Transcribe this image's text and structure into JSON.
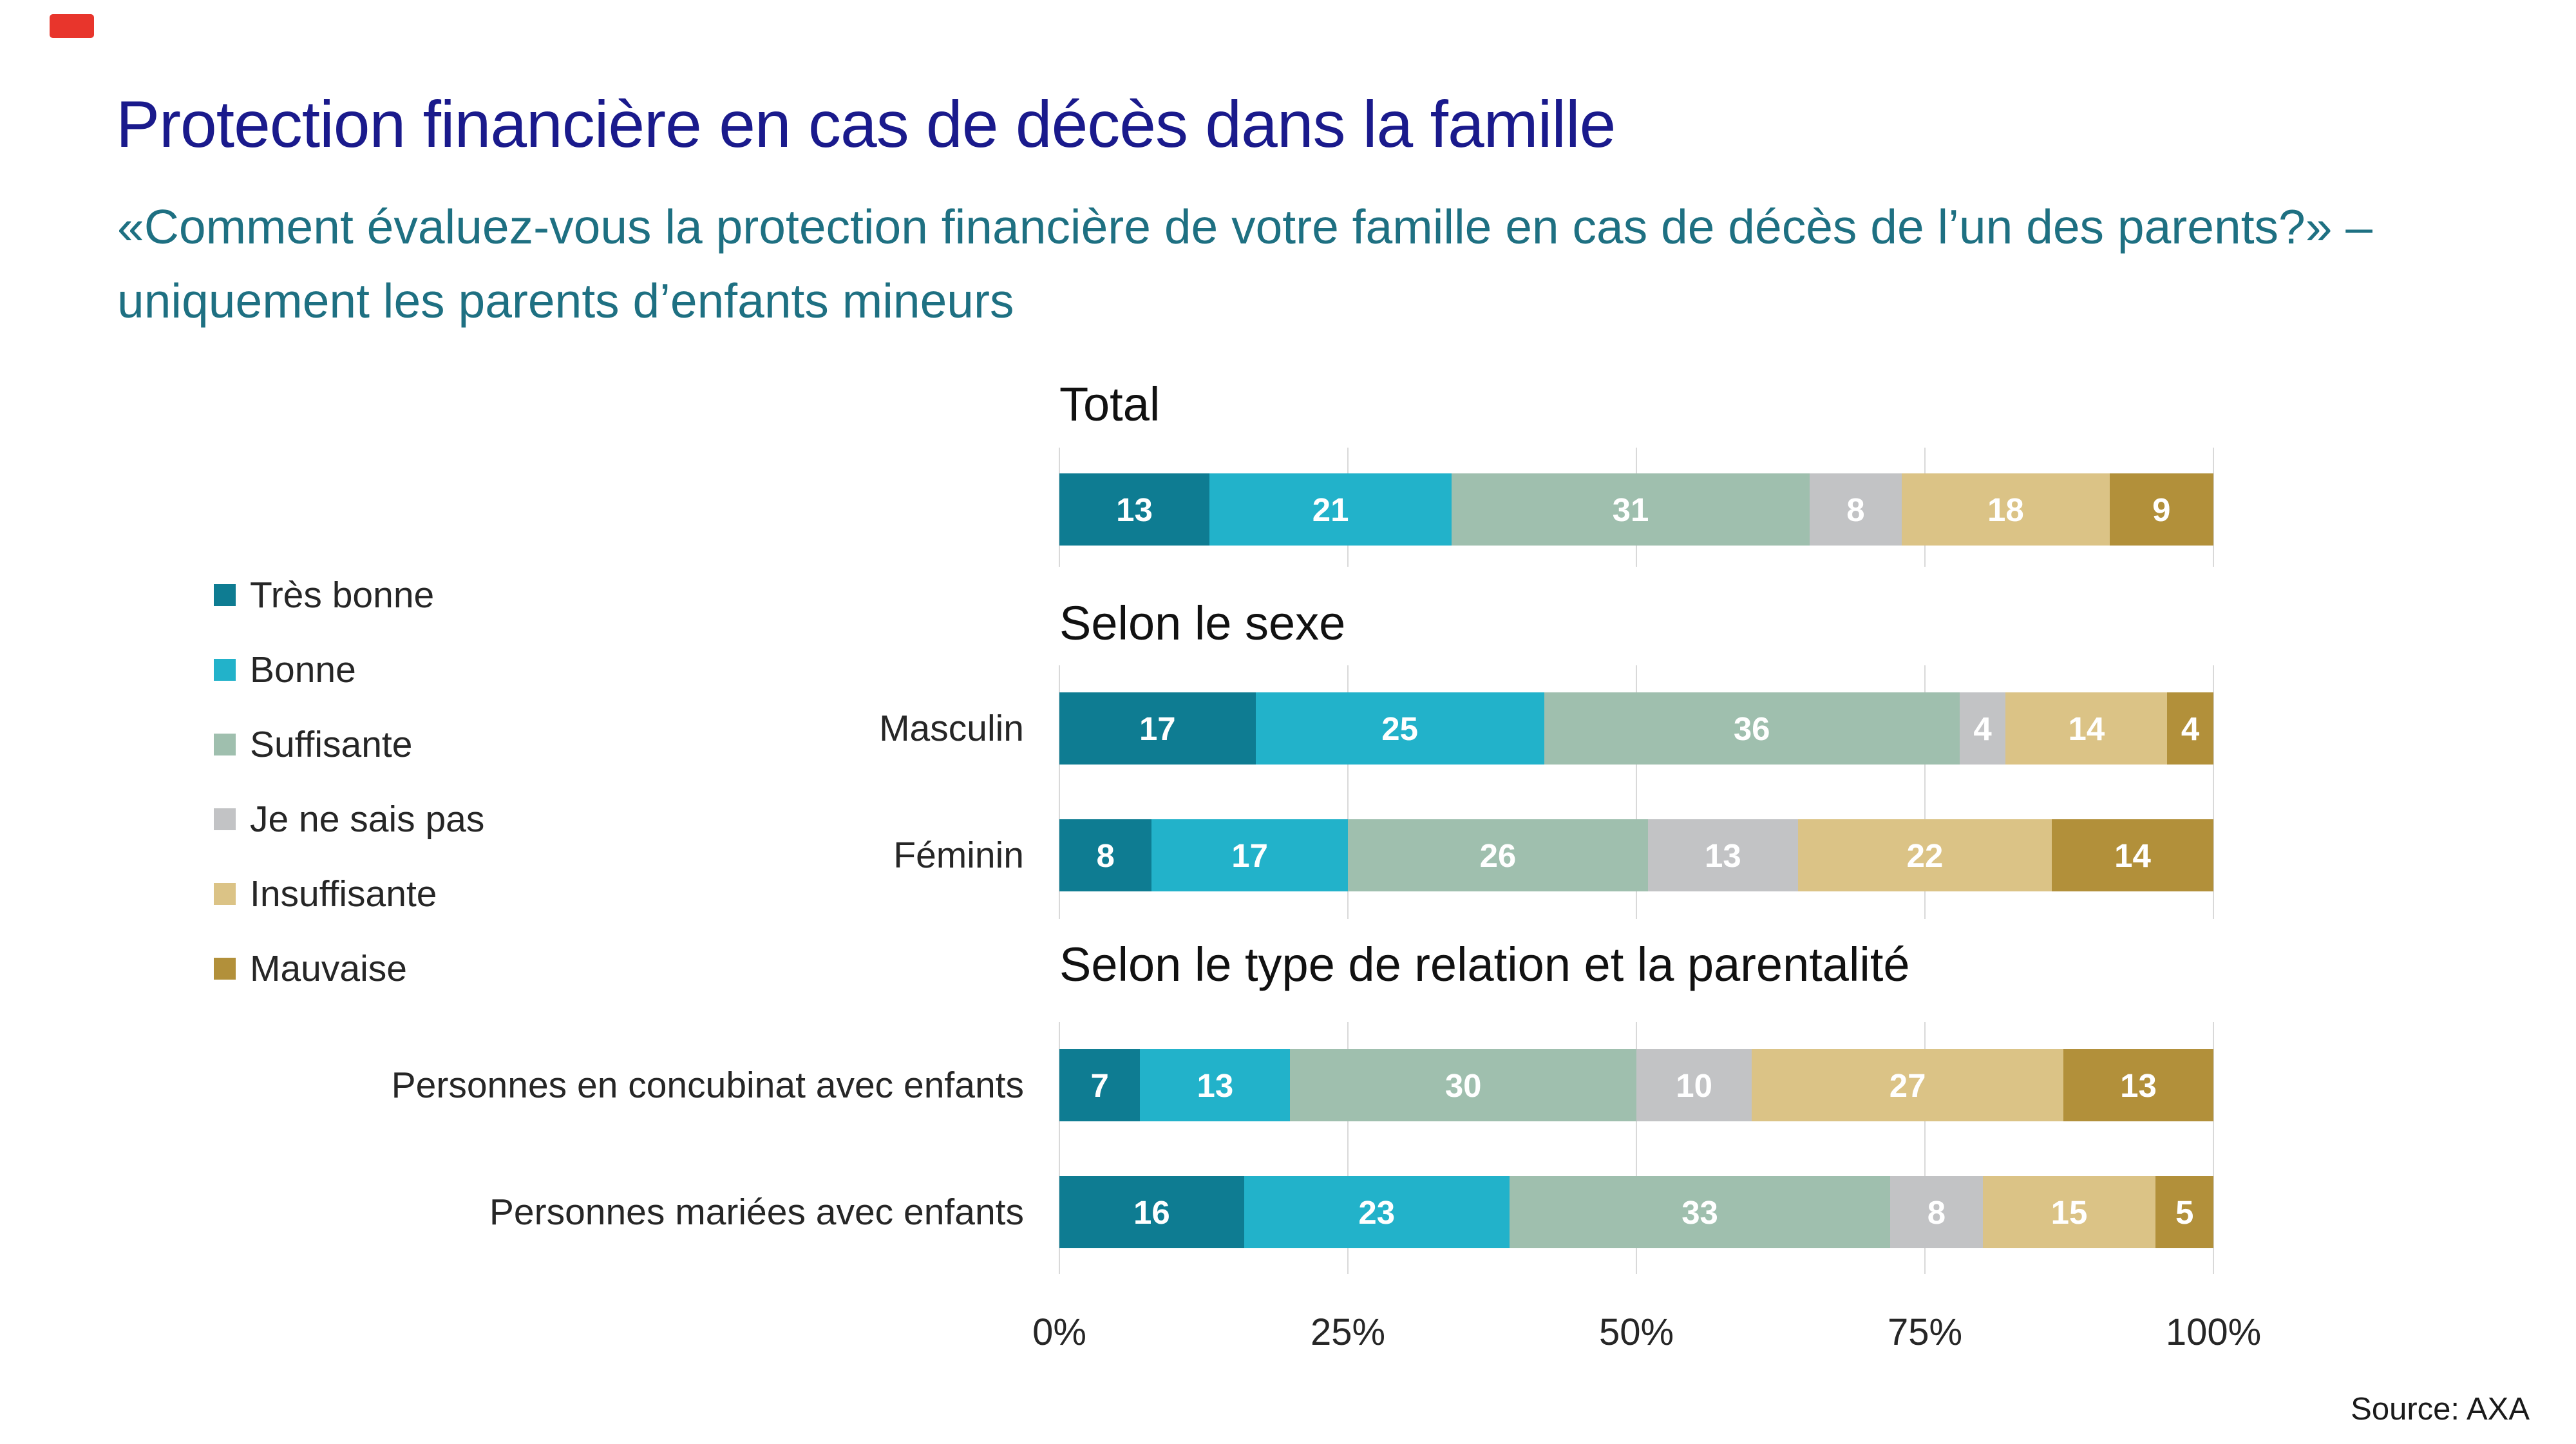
{
  "page": {
    "title": "Protection financière en cas de décès dans la famille",
    "subtitle": "«Comment évaluez-vous la protection financière de votre famille en cas de décès de l’un des parents?» – uniquement les parents d’enfants mineurs",
    "source": "Source: AXA",
    "accent_colors": {
      "title": "#1A1A8C",
      "subtitle": "#1E7082",
      "red_mark": "#E8352C",
      "gridline": "#D9D9D9"
    }
  },
  "chart_data": {
    "type": "bar",
    "orientation": "horizontal-stacked",
    "unit": "%",
    "xlim": [
      0,
      100
    ],
    "grid": true,
    "legend_position": "left",
    "legend": [
      {
        "label": "Très bonne",
        "color": "#0E7C92"
      },
      {
        "label": "Bonne",
        "color": "#22B2CA"
      },
      {
        "label": "Suffisante",
        "color": "#9FBFAE"
      },
      {
        "label": "Je ne sais pas",
        "color": "#C2C3C5"
      },
      {
        "label": "Insuffisante",
        "color": "#DBC386"
      },
      {
        "label": "Mauvaise",
        "color": "#B2903A"
      }
    ],
    "x_ticks": [
      {
        "label": "0%",
        "value": 0
      },
      {
        "label": "25%",
        "value": 25
      },
      {
        "label": "50%",
        "value": 50
      },
      {
        "label": "75%",
        "value": 75
      },
      {
        "label": "100%",
        "value": 100
      }
    ],
    "sections": [
      {
        "title": "Total",
        "rows": [
          {
            "label": "",
            "values": [
              13,
              21,
              31,
              8,
              18,
              9
            ]
          }
        ]
      },
      {
        "title": "Selon le sexe",
        "rows": [
          {
            "label": "Masculin",
            "values": [
              17,
              25,
              36,
              4,
              14,
              4
            ]
          },
          {
            "label": "Féminin",
            "values": [
              8,
              17,
              26,
              13,
              22,
              14
            ]
          }
        ]
      },
      {
        "title": "Selon le type de relation et la parentalité",
        "rows": [
          {
            "label": "Personnes en concubinat avec enfants",
            "values": [
              7,
              13,
              30,
              10,
              27,
              13
            ]
          },
          {
            "label": "Personnes mariées avec enfants",
            "values": [
              16,
              23,
              33,
              8,
              15,
              5
            ]
          }
        ]
      }
    ]
  }
}
